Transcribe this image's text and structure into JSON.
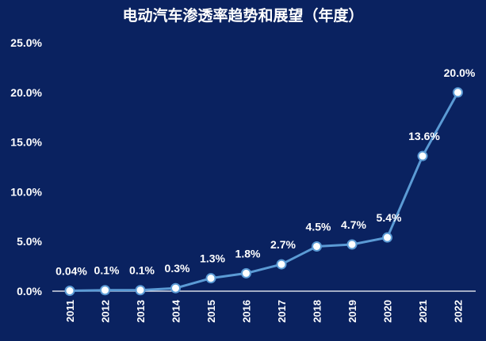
{
  "chart_data": {
    "type": "line",
    "title": "电动汽车渗透率趋势和展望（年度）",
    "xlabel": "",
    "ylabel": "",
    "categories": [
      "2011",
      "2012",
      "2013",
      "2014",
      "2015",
      "2016",
      "2017",
      "2018",
      "2019",
      "2020",
      "2021",
      "2022"
    ],
    "series": [
      {
        "values": [
          0.04,
          0.1,
          0.1,
          0.3,
          1.3,
          1.8,
          2.7,
          4.5,
          4.7,
          5.4,
          13.6,
          20.0
        ],
        "labels": [
          "0.04%",
          "0.1%",
          "0.1%",
          "0.3%",
          "1.3%",
          "1.8%",
          "2.7%",
          "4.5%",
          "4.7%",
          "5.4%",
          "13.6%",
          "20.0%"
        ]
      }
    ],
    "ylim": [
      0,
      25
    ],
    "yticks": [
      "0.0%",
      "5.0%",
      "10.0%",
      "15.0%",
      "20.0%",
      "25.0%"
    ],
    "grid": false,
    "legend": "none",
    "colors": {
      "background": "#0a2260",
      "line": "#5b9bd5",
      "marker_fill": "#ffffff",
      "text": "#ffffff",
      "axis": "#ffffff"
    }
  }
}
